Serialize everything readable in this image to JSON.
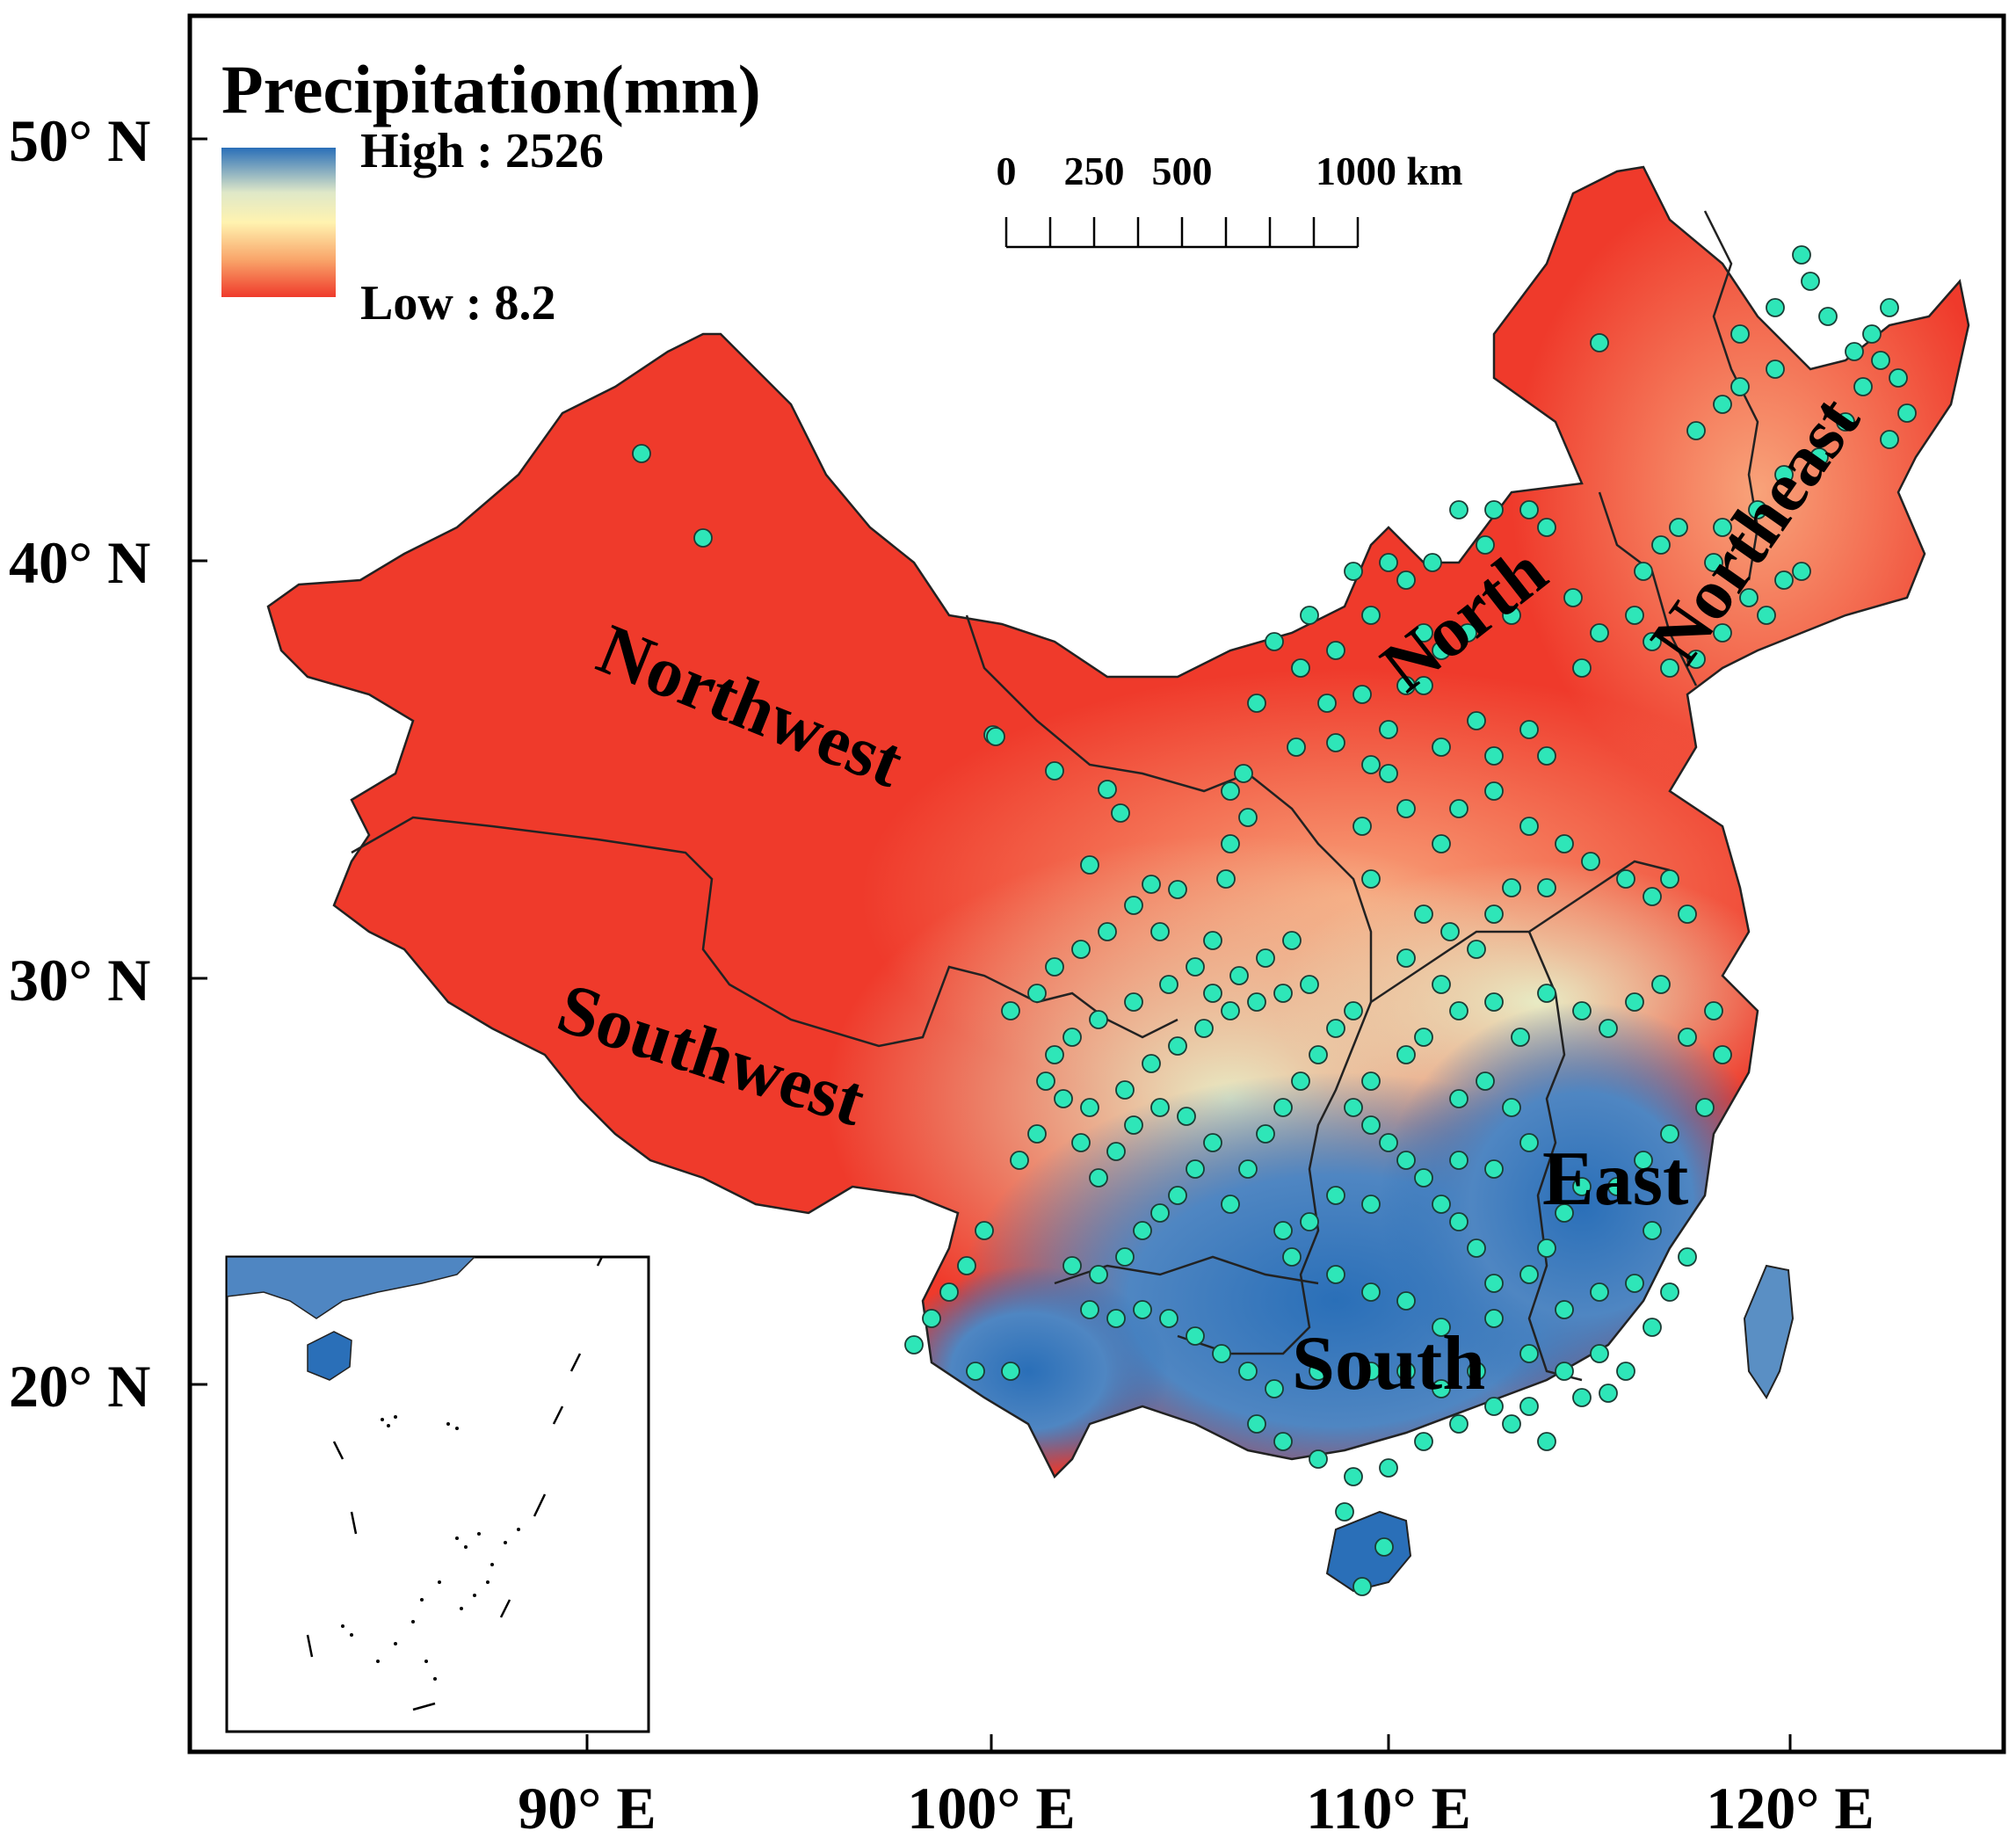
{
  "legend": {
    "title": "Precipitation(mm)",
    "high_label": "High : 2526",
    "low_label": "Low : 8.2",
    "high_value": 2526,
    "low_value": 8.2,
    "ramp_colors": [
      "#2a6fb8",
      "#dfe8c8",
      "#fff3b0",
      "#f9a56a",
      "#ef3a2b"
    ]
  },
  "scale_bar": {
    "ticks": [
      0,
      250,
      500,
      1000
    ],
    "labels": [
      "0",
      "250",
      "500",
      "1000 km"
    ]
  },
  "axes": {
    "lat_labels": [
      "50° N",
      "40° N",
      "30° N",
      "20° N"
    ],
    "lon_labels": [
      "90° E",
      "100° E",
      "110° E",
      "120° E"
    ]
  },
  "regions": [
    "Northwest",
    "North",
    "Northeast",
    "Southwest",
    "East",
    "South"
  ],
  "colors": {
    "dry": "#ef3a2b",
    "mid": "#fff3b0",
    "wet": "#2a6fb8",
    "station": "#2ee6b8"
  },
  "station_marker": "circle"
}
